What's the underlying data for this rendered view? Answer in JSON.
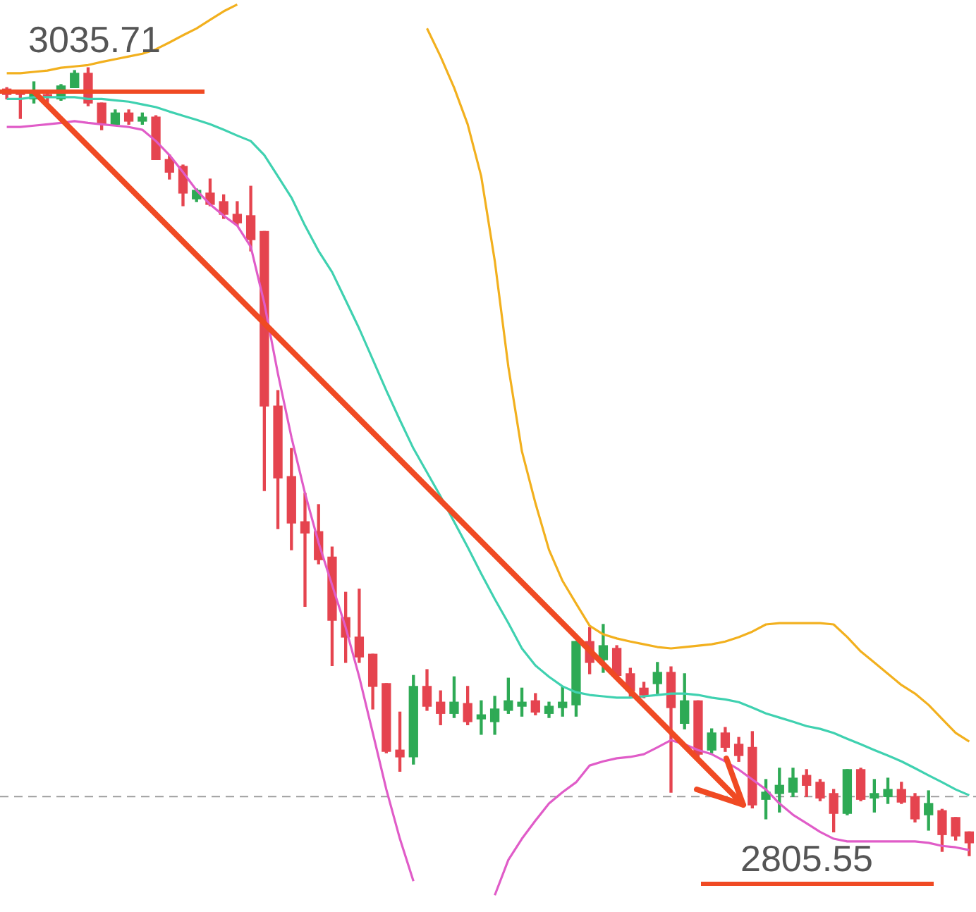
{
  "chart_data": {
    "type": "candlestick",
    "categories": [
      null,
      null,
      null,
      null,
      null,
      null,
      null,
      null,
      null,
      null,
      null,
      null,
      null,
      null,
      null,
      null,
      null,
      null,
      null,
      null,
      null,
      null,
      null,
      null,
      null,
      null,
      null,
      null,
      null,
      null,
      null,
      null,
      null,
      null,
      null,
      null,
      null,
      null,
      null,
      null,
      null,
      null,
      null,
      null,
      null,
      null,
      null,
      null,
      null,
      null,
      null,
      null,
      null,
      null,
      null,
      null,
      null,
      null,
      null,
      null,
      null,
      null,
      null,
      null,
      null,
      null,
      null,
      null,
      null,
      null,
      null,
      null
    ],
    "ohlc": [
      [
        3029.5,
        3029.9,
        3026.6,
        3027.9
      ],
      [
        3028.7,
        3029.1,
        3020.9,
        3027.9
      ],
      [
        3026.6,
        3031.6,
        3025.4,
        3028.3
      ],
      [
        3027.9,
        3029.1,
        3025.4,
        3027.1
      ],
      [
        3026.6,
        3030.8,
        3026.2,
        3030.4
      ],
      [
        3029.9,
        3034.9,
        3029.9,
        3034.1
      ],
      [
        3034.1,
        3035.71,
        3024.6,
        3025.4
      ],
      [
        3025.4,
        3025.4,
        3017.6,
        3019.2
      ],
      [
        3019.2,
        3023.4,
        3018.8,
        3022.5
      ],
      [
        3022.5,
        3023.4,
        3019.2,
        3020.1
      ],
      [
        3020.1,
        3022.5,
        3019.2,
        3021.3
      ],
      [
        3021.3,
        3021.7,
        3008.9,
        3008.9
      ],
      [
        3008.9,
        3010.2,
        3003.2,
        3005.2
      ],
      [
        3006.9,
        3007.3,
        2995.4,
        2999.1
      ],
      [
        2997.4,
        3000.3,
        2996.6,
        2999.9
      ],
      [
        2999.1,
        3003.2,
        2995.4,
        2995.8
      ],
      [
        2996.6,
        2998.6,
        2991.7,
        2992.9
      ],
      [
        2992.9,
        2996.6,
        2989.6,
        2990.4
      ],
      [
        2992.5,
        3001.1,
        2982.2,
        2985.5
      ],
      [
        2987.9,
        2987.9,
        2912.2,
        2936.9
      ],
      [
        2936.9,
        2941.4,
        2901.1,
        2915.9
      ],
      [
        2916.3,
        2924.5,
        2894.9,
        2902.7
      ],
      [
        2903.1,
        2911.4,
        2878.4,
        2899.8
      ],
      [
        2900.2,
        2908.1,
        2890.8,
        2892.0
      ],
      [
        2892.8,
        2895.7,
        2861.1,
        2874.3
      ],
      [
        2875.1,
        2882.5,
        2862.0,
        2869.4
      ],
      [
        2869.4,
        2883.4,
        2862.0,
        2863.6
      ],
      [
        2864.4,
        2864.4,
        2848.4,
        2855.0
      ],
      [
        2855.8,
        2855.8,
        2835.6,
        2836.0
      ],
      [
        2836.4,
        2847.5,
        2830.2,
        2834.4
      ],
      [
        2834.4,
        2858.2,
        2832.3,
        2855.0
      ],
      [
        2855.0,
        2859.9,
        2848.0,
        2849.2
      ],
      [
        2850.4,
        2853.7,
        2843.8,
        2847.1
      ],
      [
        2847.1,
        2857.8,
        2845.9,
        2850.4
      ],
      [
        2850.0,
        2855.0,
        2843.8,
        2844.7
      ],
      [
        2845.5,
        2850.8,
        2841.0,
        2846.7
      ],
      [
        2844.7,
        2852.1,
        2841.0,
        2848.4
      ],
      [
        2848.0,
        2857.4,
        2847.1,
        2850.8
      ],
      [
        2849.2,
        2854.5,
        2846.3,
        2850.4
      ],
      [
        2850.8,
        2852.9,
        2846.7,
        2847.5
      ],
      [
        2847.1,
        2850.4,
        2845.9,
        2849.2
      ],
      [
        2848.8,
        2855.0,
        2846.3,
        2850.4
      ],
      [
        2849.6,
        2868.1,
        2846.3,
        2868.1
      ],
      [
        2868.1,
        2872.2,
        2858.7,
        2862.0
      ],
      [
        2862.8,
        2873.1,
        2859.1,
        2866.9
      ],
      [
        2866.1,
        2866.9,
        2857.0,
        2858.2
      ],
      [
        2858.7,
        2860.3,
        2852.1,
        2853.7
      ],
      [
        2854.5,
        2856.2,
        2851.7,
        2852.5
      ],
      [
        2855.8,
        2862.0,
        2852.9,
        2859.1
      ],
      [
        2859.1,
        2860.7,
        2824.1,
        2848.8
      ],
      [
        2844.2,
        2858.7,
        2842.6,
        2850.8
      ],
      [
        2850.8,
        2850.8,
        2834.4,
        2835.2
      ],
      [
        2836.4,
        2842.6,
        2835.6,
        2841.4
      ],
      [
        2841.4,
        2843.0,
        2836.0,
        2837.2
      ],
      [
        2838.1,
        2840.1,
        2833.1,
        2834.8
      ],
      [
        2837.2,
        2841.8,
        2819.5,
        2820.4
      ],
      [
        2822.0,
        2827.8,
        2816.3,
        2824.1
      ],
      [
        2823.7,
        2831.1,
        2818.3,
        2826.1
      ],
      [
        2824.1,
        2831.1,
        2822.8,
        2828.2
      ],
      [
        2829.0,
        2830.7,
        2822.8,
        2826.1
      ],
      [
        2827.0,
        2827.8,
        2821.6,
        2822.4
      ],
      [
        2823.7,
        2824.9,
        2812.5,
        2817.9
      ],
      [
        2817.9,
        2830.7,
        2817.5,
        2830.7
      ],
      [
        2830.7,
        2831.1,
        2821.6,
        2822.0
      ],
      [
        2822.4,
        2827.8,
        2818.3,
        2823.7
      ],
      [
        2822.8,
        2828.2,
        2820.8,
        2824.9
      ],
      [
        2824.9,
        2827.0,
        2820.8,
        2821.2
      ],
      [
        2822.8,
        2823.7,
        2815.4,
        2816.3
      ],
      [
        2817.5,
        2824.5,
        2813.0,
        2820.8
      ],
      [
        2818.7,
        2819.1,
        2806.8,
        2811.7
      ],
      [
        2816.7,
        2816.7,
        2810.1,
        2811.3
      ],
      [
        2812.5,
        2812.5,
        2805.55,
        2809.3
      ]
    ],
    "colors": [
      "#e5444f",
      "#e5444f",
      "#2eaa55",
      "#e5444f",
      "#2eaa55",
      "#2eaa55",
      "#e5444f",
      "#e5444f",
      "#2eaa55",
      "#e5444f",
      "#2eaa55",
      "#e5444f",
      "#e5444f",
      "#e5444f",
      "#2eaa55",
      "#e5444f",
      "#e5444f",
      "#e5444f",
      "#e5444f",
      "#e5444f",
      "#e5444f",
      "#e5444f",
      "#e5444f",
      "#e5444f",
      "#e5444f",
      "#e5444f",
      "#e5444f",
      "#e5444f",
      "#e5444f",
      "#e5444f",
      "#2eaa55",
      "#e5444f",
      "#e5444f",
      "#2eaa55",
      "#e5444f",
      "#2eaa55",
      "#2eaa55",
      "#2eaa55",
      "#2eaa55",
      "#e5444f",
      "#2eaa55",
      "#2eaa55",
      "#2eaa55",
      "#e5444f",
      "#2eaa55",
      "#e5444f",
      "#e5444f",
      "#e5444f",
      "#2eaa55",
      "#e5444f",
      "#2eaa55",
      "#e5444f",
      "#2eaa55",
      "#e5444f",
      "#e5444f",
      "#e5444f",
      "#2eaa55",
      "#2eaa55",
      "#2eaa55",
      "#e5444f",
      "#e5444f",
      "#e5444f",
      "#2eaa55",
      "#e5444f",
      "#2eaa55",
      "#2eaa55",
      "#e5444f",
      "#e5444f",
      "#2eaa55",
      "#e5444f",
      "#e5444f",
      "#e5444f"
    ],
    "series": [
      {
        "type": "line",
        "color": "#f2b01e",
        "values": [
          3034.1,
          3034.1,
          3034.5,
          3034.9,
          3035.7,
          3036.1,
          3036.5,
          3037.4,
          3038.2,
          3039.0,
          3039.8,
          3041.1,
          3043.1,
          3045.2,
          3047.2,
          3049.7,
          3052.2,
          3054.2,
          null,
          null,
          null,
          null,
          null,
          null,
          null,
          null,
          null,
          null,
          null,
          null,
          null,
          3047.2,
          3039.0,
          3029.9,
          3019.2,
          3004.0,
          2979.3,
          2948.4,
          2923.7,
          2908.5,
          2894.9,
          2885.8,
          2879.2,
          2872.7,
          2870.2,
          2869.0,
          2868.1,
          2867.3,
          2866.5,
          2866.1,
          2866.5,
          2866.9,
          2867.3,
          2868.1,
          2869.4,
          2871.0,
          2873.1,
          2873.5,
          2873.5,
          2873.5,
          2873.5,
          2873.1,
          2869.4,
          2865.2,
          2862.0,
          2858.7,
          2855.4,
          2852.9,
          2849.6,
          2845.5,
          2841.4,
          2838.9
        ]
      },
      {
        "type": "line",
        "color": "#3fd1b0",
        "values": [
          3026.6,
          3026.6,
          3027.1,
          3027.1,
          3027.1,
          3027.1,
          3026.6,
          3026.6,
          3026.2,
          3025.8,
          3025.0,
          3024.2,
          3022.9,
          3021.7,
          3020.5,
          3019.2,
          3017.6,
          3015.9,
          3014.3,
          3010.2,
          3004.0,
          2997.8,
          2989.6,
          2982.2,
          2976.0,
          2967.8,
          2959.5,
          2950.5,
          2941.4,
          2932.8,
          2924.5,
          2917.5,
          2910.5,
          2903.1,
          2895.7,
          2887.9,
          2880.5,
          2873.5,
          2866.1,
          2861.1,
          2857.8,
          2855.0,
          2853.3,
          2852.5,
          2852.1,
          2851.7,
          2851.7,
          2852.1,
          2852.5,
          2852.9,
          2852.9,
          2852.5,
          2851.7,
          2851.2,
          2850.4,
          2848.8,
          2847.1,
          2845.9,
          2844.7,
          2843.4,
          2842.6,
          2841.4,
          2839.7,
          2838.1,
          2836.4,
          2834.8,
          2833.1,
          2831.1,
          2829.0,
          2827.0,
          2824.9,
          2823.2
        ]
      },
      {
        "type": "line",
        "color": "#e05cc8",
        "values": [
          3018.4,
          3018.4,
          3018.8,
          3019.2,
          3019.6,
          3020.1,
          3019.6,
          3019.2,
          3018.8,
          3018.4,
          3017.6,
          3014.3,
          3010.2,
          3005.2,
          2999.9,
          2995.8,
          2992.5,
          2989.6,
          2983.4,
          2966.9,
          2946.4,
          2927.8,
          2911.4,
          2897.0,
          2884.6,
          2872.2,
          2857.8,
          2841.4,
          2824.9,
          2810.5,
          2798.1,
          null,
          null,
          null,
          null,
          null,
          2794.0,
          2804.3,
          2810.5,
          2815.8,
          2820.8,
          2824.1,
          2827.0,
          2831.9,
          2833.1,
          2834.0,
          2834.4,
          2835.2,
          2837.2,
          2839.3,
          2838.1,
          2836.4,
          2835.2,
          2833.1,
          2830.7,
          2827.8,
          2824.9,
          2820.8,
          2817.5,
          2815.0,
          2812.5,
          2810.5,
          2809.7,
          2809.7,
          2809.7,
          2809.7,
          2809.7,
          2809.7,
          2809.3,
          2808.4,
          2808.0,
          2807.2
        ]
      }
    ],
    "ylim": [
      2789.1,
      3055.5
    ],
    "ref_lines": [
      {
        "axis": "y",
        "value": 2822.8,
        "color": "#9e9e9e",
        "line_style": "dashed"
      }
    ],
    "annotations": [
      "3035.71",
      "2805.55"
    ],
    "tick_labels": false,
    "marker": "none",
    "legend": false
  }
}
